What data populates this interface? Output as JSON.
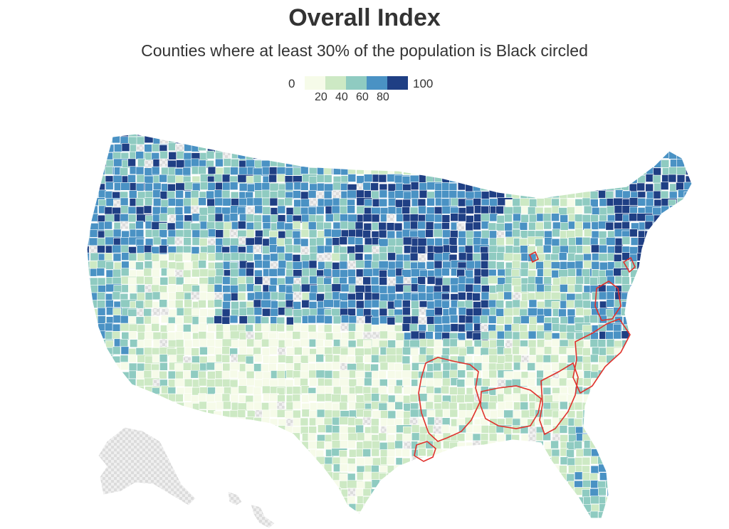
{
  "title": "Overall Index",
  "subtitle": "Counties where at least 30% of the population is Black circled",
  "legend": {
    "min_label": "0",
    "max_label": "100",
    "ticks": [
      "20",
      "40",
      "60",
      "80"
    ],
    "colors": [
      "#f6fbe9",
      "#cde9c4",
      "#8fcbc1",
      "#4a92c4",
      "#1f3f84"
    ]
  },
  "colors": {
    "no_data": "#e4e4e4",
    "highlight_outline": "#e0312c",
    "county_border": "#ffffff"
  }
}
